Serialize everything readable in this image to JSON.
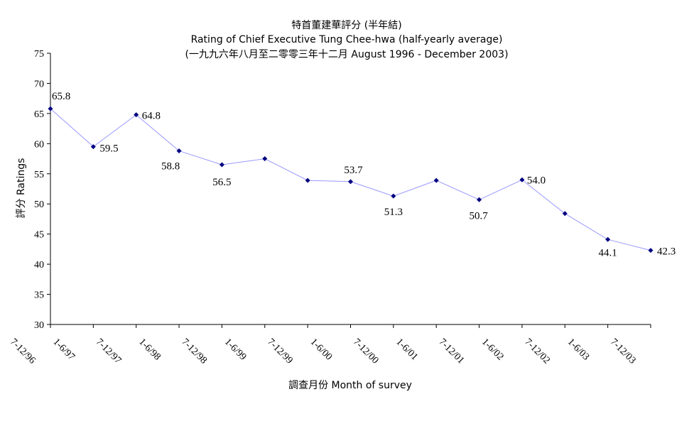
{
  "chart_data": {
    "type": "line",
    "title": "特首董建華評分 (半年結)",
    "subtitle": "Rating of Chief Executive Tung Chee-hwa  (half-yearly average)",
    "subtitle2": "(一九九六年八月至二零零三年十二月 August 1996 - December 2003)",
    "xlabel": "調查月份 Month of survey",
    "ylabel": "評分 Ratings",
    "ylim": [
      30,
      75
    ],
    "yticks": [
      30,
      35,
      40,
      45,
      50,
      55,
      60,
      65,
      70,
      75
    ],
    "categories": [
      "7-12/96",
      "1-6/97",
      "7-12/97",
      "1-6/98",
      "7-12/98",
      "1-6/99",
      "7-12/99",
      "1-6/00",
      "7-12/00",
      "1-6/01",
      "7-12/01",
      "1-6/02",
      "7-12/02",
      "1-6/03",
      "7-12/03"
    ],
    "series": [
      {
        "values": [
          65.8,
          59.5,
          64.8,
          58.8,
          56.5,
          57.5,
          53.9,
          53.7,
          51.3,
          53.9,
          50.7,
          54.0,
          48.4,
          44.1,
          42.3
        ],
        "data_labels": [
          "65.8",
          "59.5",
          "64.8",
          "58.8",
          "56.5",
          null,
          null,
          "53.7",
          "51.3",
          null,
          "50.7",
          "54.0",
          null,
          "44.1",
          "42.3"
        ],
        "line_color": "#9999ff",
        "marker_color": "#000080"
      }
    ],
    "grid": false,
    "legend": "none"
  }
}
